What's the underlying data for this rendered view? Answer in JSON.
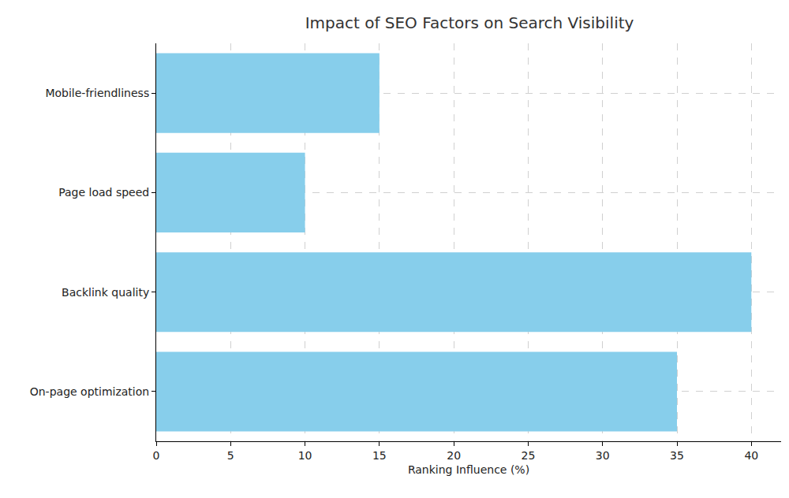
{
  "chart_data": {
    "type": "bar",
    "orientation": "horizontal",
    "title": "Impact of SEO Factors on Search Visibility",
    "x_label": "Ranking Influence (%)",
    "categories": [
      "On-page optimization",
      "Backlink quality",
      "Page load speed",
      "Mobile-friendliness"
    ],
    "values": [
      35,
      40,
      10,
      15
    ],
    "color": "#87ceeb",
    "xlim": [
      0,
      42
    ],
    "xticks": [
      0,
      5,
      10,
      15,
      20,
      25,
      30,
      35,
      40
    ],
    "grid": true
  }
}
